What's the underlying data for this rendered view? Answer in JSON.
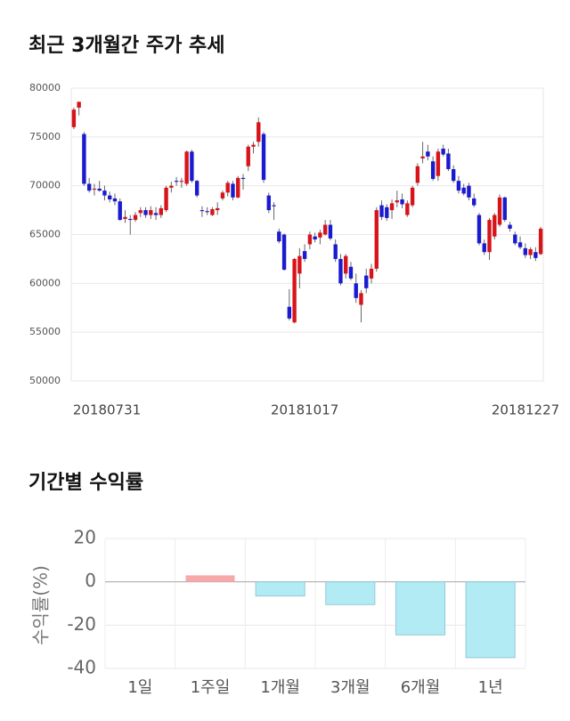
{
  "chart_data": [
    {
      "type": "candlestick",
      "title": "최근 3개월간 주가 추세",
      "categories": [
        "20180731",
        null,
        null,
        null,
        null,
        null,
        null,
        null,
        null,
        null,
        null,
        null,
        null,
        null,
        null,
        null,
        null,
        null,
        null,
        null,
        null,
        null,
        null,
        null,
        null,
        null,
        null,
        null,
        null,
        null,
        null,
        null,
        null,
        null,
        null,
        null,
        null,
        null,
        null,
        null,
        null,
        null,
        null,
        null,
        null,
        "20181017",
        null,
        null,
        null,
        null,
        null,
        null,
        null,
        null,
        null,
        null,
        null,
        null,
        null,
        null,
        null,
        null,
        null,
        null,
        null,
        null,
        null,
        null,
        null,
        null,
        null,
        null,
        null,
        null,
        null,
        null,
        null,
        null,
        null,
        null,
        null,
        null,
        null,
        null,
        null,
        null,
        null,
        null,
        null,
        null,
        null,
        "20181227"
      ],
      "open": [
        76000,
        78000,
        75300,
        70200,
        69600,
        69700,
        69500,
        69000,
        68700,
        68400,
        66600,
        66600,
        66500,
        67200,
        67500,
        67000,
        67200,
        67000,
        67500,
        69800,
        70500,
        70400,
        70200,
        73500,
        70500,
        67500,
        67400,
        67000,
        67500,
        68700,
        69300,
        70200,
        68800,
        70800,
        72000,
        74000,
        74500,
        75300,
        69000,
        68000,
        65300,
        65000,
        57600,
        56000,
        61000,
        63300,
        64000,
        64800,
        64700,
        65000,
        66000,
        64000,
        62500,
        61000,
        61700,
        60000,
        57800,
        60800,
        60500,
        61500,
        68000,
        67800,
        67500,
        68300,
        68600,
        67000,
        68000,
        70300,
        72800,
        73500,
        72500,
        71000,
        73800,
        73300,
        71700,
        70500,
        69800,
        70000,
        68700,
        67000,
        64100,
        63200,
        64800,
        66000,
        68800,
        66000,
        65000,
        64200,
        63600,
        62900,
        63200,
        63000
      ],
      "high": [
        78000,
        78600,
        75500,
        70800,
        70200,
        70500,
        70000,
        69400,
        69200,
        68700,
        67500,
        67000,
        67300,
        67800,
        67800,
        67900,
        67800,
        68000,
        70000,
        70400,
        70900,
        70800,
        73600,
        73700,
        70600,
        67900,
        67800,
        67800,
        68300,
        69500,
        70500,
        70500,
        71000,
        71200,
        74200,
        74500,
        77000,
        75500,
        69300,
        68300,
        65600,
        65100,
        59400,
        62600,
        63600,
        64000,
        65300,
        65200,
        65500,
        66500,
        66500,
        64500,
        63000,
        63000,
        62200,
        61000,
        59300,
        61500,
        62000,
        67800,
        68500,
        68100,
        68600,
        69500,
        69200,
        68500,
        70000,
        72300,
        74500,
        74200,
        73000,
        73800,
        74200,
        73800,
        72100,
        71000,
        70200,
        70300,
        69200,
        67200,
        64500,
        66700,
        67200,
        69100,
        68900,
        66300,
        65300,
        64800,
        64100,
        63700,
        63700,
        65800
      ],
      "low": [
        75800,
        77200,
        70000,
        69300,
        69000,
        69400,
        68500,
        68300,
        68000,
        66400,
        66200,
        65000,
        66300,
        66800,
        66700,
        66600,
        66500,
        66700,
        67300,
        69300,
        70000,
        69800,
        70000,
        70300,
        68800,
        66800,
        67000,
        66900,
        67000,
        68500,
        68900,
        68500,
        68700,
        69600,
        71500,
        73300,
        74000,
        70300,
        67200,
        66500,
        64100,
        61300,
        56200,
        55900,
        59500,
        62200,
        63500,
        64200,
        64000,
        64900,
        64400,
        62200,
        59800,
        60500,
        60300,
        58000,
        56000,
        59000,
        60000,
        61200,
        66500,
        66400,
        66600,
        67800,
        67700,
        66800,
        67800,
        70000,
        72300,
        72600,
        70500,
        70500,
        73000,
        71500,
        70300,
        69200,
        69000,
        68500,
        67800,
        63900,
        62900,
        62400,
        64500,
        65800,
        66300,
        65300,
        63900,
        63500,
        62600,
        62500,
        62300,
        62900
      ],
      "close": [
        77800,
        78600,
        70200,
        69500,
        69700,
        69500,
        69000,
        68600,
        68400,
        66500,
        66800,
        66500,
        67000,
        67500,
        67000,
        67500,
        67000,
        67700,
        69800,
        70000,
        70400,
        70500,
        73500,
        70500,
        69000,
        67400,
        67300,
        67600,
        67700,
        69300,
        70300,
        68800,
        70800,
        70700,
        74000,
        74200,
        76500,
        70600,
        67500,
        67900,
        64300,
        61400,
        56400,
        62500,
        62800,
        62500,
        65000,
        64500,
        65200,
        66000,
        64600,
        62500,
        60000,
        62800,
        60500,
        58500,
        59000,
        59500,
        61500,
        67500,
        66800,
        66700,
        68200,
        68500,
        68100,
        68200,
        69800,
        72000,
        73000,
        73000,
        70700,
        73500,
        73200,
        71700,
        70500,
        69500,
        69200,
        68800,
        68000,
        64100,
        63200,
        66500,
        67000,
        68800,
        66500,
        65600,
        64100,
        63700,
        62900,
        63500,
        62600,
        65600
      ],
      "up_color": "#d7141a",
      "down_color": "#1a1ad0",
      "grid": true,
      "ylim": [
        50000,
        80000
      ],
      "yticks": [
        50000,
        55000,
        60000,
        65000,
        70000,
        75000,
        80000
      ]
    },
    {
      "type": "bar",
      "title": "기간별 수익률",
      "ylabel": "수익률(%)",
      "categories": [
        "1일",
        "1주일",
        "1개월",
        "3개월",
        "6개월",
        "1년"
      ],
      "values": [
        0,
        3,
        -6.5,
        -10.5,
        -24.5,
        -35
      ],
      "positive_color": "#f7a8a8",
      "negative_color": "#b2ebf4",
      "negative_stroke": "#8fcbd6",
      "grid": true,
      "ylim": [
        -40,
        20
      ],
      "yticks": [
        20,
        0,
        -20,
        -40
      ]
    }
  ]
}
